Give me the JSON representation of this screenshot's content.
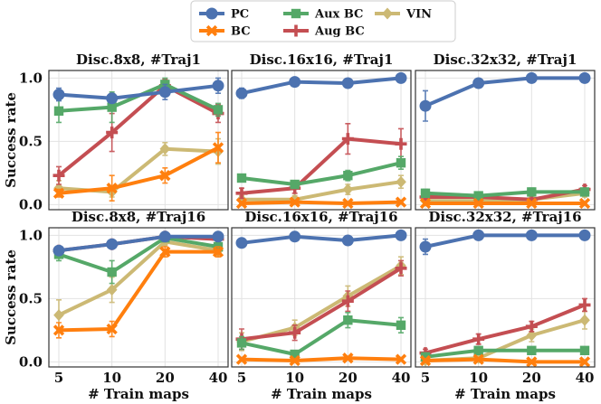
{
  "legend": {
    "entries": [
      {
        "name": "PC",
        "color": "#4c72b0",
        "marker": "circle"
      },
      {
        "name": "BC",
        "color": "#ff7f0e",
        "marker": "x"
      },
      {
        "name": "Aux BC",
        "color": "#55a868",
        "marker": "square"
      },
      {
        "name": "Aug BC",
        "color": "#c44e52",
        "marker": "plus"
      },
      {
        "name": "VIN",
        "color": "#ccb974",
        "marker": "diamond"
      }
    ]
  },
  "ylabel": "Success rate",
  "xlabel": "# Train maps",
  "chart_data": [
    {
      "type": "line",
      "title": "Disc.8x8, #Traj1",
      "categories": [
        "5",
        "10",
        "20",
        "40"
      ],
      "ylim": [
        -0.04,
        1.06
      ],
      "yticks": [
        "0.0",
        "0.5",
        "1.0"
      ],
      "series": [
        {
          "name": "PC",
          "values": [
            0.87,
            0.84,
            0.89,
            0.94
          ],
          "err": [
            0.05,
            0.03,
            0.06,
            0.06
          ]
        },
        {
          "name": "BC",
          "values": [
            0.09,
            0.13,
            0.23,
            0.45
          ],
          "err": [
            0.03,
            0.1,
            0.06,
            0.12
          ]
        },
        {
          "name": "Aux BC",
          "values": [
            0.74,
            0.77,
            0.95,
            0.75
          ],
          "err": [
            0.09,
            0.12,
            0.05,
            0.05
          ]
        },
        {
          "name": "Aug BC",
          "values": [
            0.23,
            0.57,
            0.94,
            0.72
          ],
          "err": [
            0.07,
            0.15,
            0.05,
            0.07
          ]
        },
        {
          "name": "VIN",
          "values": [
            0.13,
            0.1,
            0.44,
            0.42
          ],
          "err": [
            0.06,
            0.04,
            0.05,
            0.1
          ]
        }
      ]
    },
    {
      "type": "line",
      "title": "Disc.16x16, #Traj1",
      "categories": [
        "5",
        "10",
        "20",
        "40"
      ],
      "ylim": [
        -0.04,
        1.06
      ],
      "yticks": [
        "0.0",
        "0.5",
        "1.0"
      ],
      "series": [
        {
          "name": "PC",
          "values": [
            0.88,
            0.97,
            0.96,
            1.0
          ],
          "err": [
            0.04,
            0.01,
            0.01,
            0.01
          ]
        },
        {
          "name": "BC",
          "values": [
            0.01,
            0.02,
            0.01,
            0.02
          ],
          "err": [
            0.01,
            0.01,
            0.01,
            0.01
          ]
        },
        {
          "name": "Aux BC",
          "values": [
            0.21,
            0.16,
            0.23,
            0.33
          ],
          "err": [
            0.03,
            0.03,
            0.04,
            0.05
          ]
        },
        {
          "name": "Aug BC",
          "values": [
            0.09,
            0.13,
            0.52,
            0.48
          ],
          "err": [
            0.04,
            0.04,
            0.12,
            0.12
          ]
        },
        {
          "name": "VIN",
          "values": [
            0.04,
            0.04,
            0.12,
            0.18
          ],
          "err": [
            0.03,
            0.03,
            0.04,
            0.05
          ]
        }
      ]
    },
    {
      "type": "line",
      "title": "Disc.32x32, #Traj1",
      "categories": [
        "5",
        "10",
        "20",
        "40"
      ],
      "ylim": [
        -0.04,
        1.06
      ],
      "yticks": [
        "0.0",
        "0.5",
        "1.0"
      ],
      "series": [
        {
          "name": "PC",
          "values": [
            0.78,
            0.96,
            1.0,
            1.0
          ],
          "err": [
            0.12,
            0.03,
            0.01,
            0.01
          ]
        },
        {
          "name": "BC",
          "values": [
            0.01,
            0.01,
            0.01,
            0.01
          ],
          "err": [
            0.01,
            0.01,
            0.01,
            0.01
          ]
        },
        {
          "name": "Aux BC",
          "values": [
            0.09,
            0.07,
            0.1,
            0.1
          ],
          "err": [
            0.03,
            0.02,
            0.03,
            0.03
          ]
        },
        {
          "name": "Aug BC",
          "values": [
            0.06,
            0.06,
            0.04,
            0.12
          ],
          "err": [
            0.02,
            0.02,
            0.03,
            0.03
          ]
        },
        {
          "name": "VIN",
          "values": [
            0.03,
            0.03,
            0.04,
            0.09
          ],
          "err": [
            0.02,
            0.02,
            0.02,
            0.03
          ]
        }
      ]
    },
    {
      "type": "line",
      "title": "Disc.8x8, #Traj16",
      "categories": [
        "5",
        "10",
        "20",
        "40"
      ],
      "ylim": [
        -0.04,
        1.06
      ],
      "yticks": [
        "0.0",
        "0.5",
        "1.0"
      ],
      "series": [
        {
          "name": "PC",
          "values": [
            0.88,
            0.93,
            0.99,
            0.99
          ],
          "err": [
            0.03,
            0.03,
            0.01,
            0.01
          ]
        },
        {
          "name": "BC",
          "values": [
            0.25,
            0.26,
            0.87,
            0.87
          ],
          "err": [
            0.06,
            0.06,
            0.04,
            0.04
          ]
        },
        {
          "name": "Aux BC",
          "values": [
            0.85,
            0.71,
            0.98,
            0.91
          ],
          "err": [
            0.05,
            0.09,
            0.02,
            0.04
          ]
        },
        {
          "name": "Aug BC",
          "values": [
            0.88,
            0.93,
            0.99,
            0.97
          ],
          "err": [
            0.03,
            0.03,
            0.01,
            0.02
          ]
        },
        {
          "name": "VIN",
          "values": [
            0.37,
            0.57,
            0.95,
            0.88
          ],
          "err": [
            0.12,
            0.1,
            0.03,
            0.04
          ]
        }
      ]
    },
    {
      "type": "line",
      "title": "Disc.16x16, #Traj16",
      "categories": [
        "5",
        "10",
        "20",
        "40"
      ],
      "ylim": [
        -0.04,
        1.06
      ],
      "yticks": [
        "0.0",
        "0.5",
        "1.0"
      ],
      "series": [
        {
          "name": "PC",
          "values": [
            0.94,
            0.99,
            0.96,
            1.0
          ],
          "err": [
            0.03,
            0.01,
            0.01,
            0.01
          ]
        },
        {
          "name": "BC",
          "values": [
            0.02,
            0.01,
            0.03,
            0.02
          ],
          "err": [
            0.01,
            0.01,
            0.01,
            0.01
          ]
        },
        {
          "name": "Aux BC",
          "values": [
            0.15,
            0.06,
            0.33,
            0.29
          ],
          "err": [
            0.05,
            0.03,
            0.06,
            0.06
          ]
        },
        {
          "name": "Aug BC",
          "values": [
            0.18,
            0.23,
            0.48,
            0.74
          ],
          "err": [
            0.08,
            0.06,
            0.08,
            0.06
          ]
        },
        {
          "name": "VIN",
          "values": [
            0.16,
            0.27,
            0.52,
            0.76
          ],
          "err": [
            0.07,
            0.06,
            0.08,
            0.07
          ]
        }
      ]
    },
    {
      "type": "line",
      "title": "Disc.32x32, #Traj16",
      "categories": [
        "5",
        "10",
        "20",
        "40"
      ],
      "ylim": [
        -0.04,
        1.06
      ],
      "yticks": [
        "0.0",
        "0.5",
        "1.0"
      ],
      "series": [
        {
          "name": "PC",
          "values": [
            0.91,
            1.0,
            1.0,
            1.0
          ],
          "err": [
            0.06,
            0.01,
            0.01,
            0.01
          ]
        },
        {
          "name": "BC",
          "values": [
            0.01,
            0.02,
            0.0,
            0.0
          ],
          "err": [
            0.01,
            0.01,
            0.01,
            0.01
          ]
        },
        {
          "name": "Aux BC",
          "values": [
            0.04,
            0.09,
            0.09,
            0.09
          ],
          "err": [
            0.02,
            0.03,
            0.02,
            0.02
          ]
        },
        {
          "name": "Aug BC",
          "values": [
            0.07,
            0.18,
            0.28,
            0.45
          ],
          "err": [
            0.03,
            0.04,
            0.04,
            0.05
          ]
        },
        {
          "name": "VIN",
          "values": [
            0.01,
            0.03,
            0.21,
            0.33
          ],
          "err": [
            0.01,
            0.02,
            0.05,
            0.07
          ]
        }
      ]
    }
  ]
}
